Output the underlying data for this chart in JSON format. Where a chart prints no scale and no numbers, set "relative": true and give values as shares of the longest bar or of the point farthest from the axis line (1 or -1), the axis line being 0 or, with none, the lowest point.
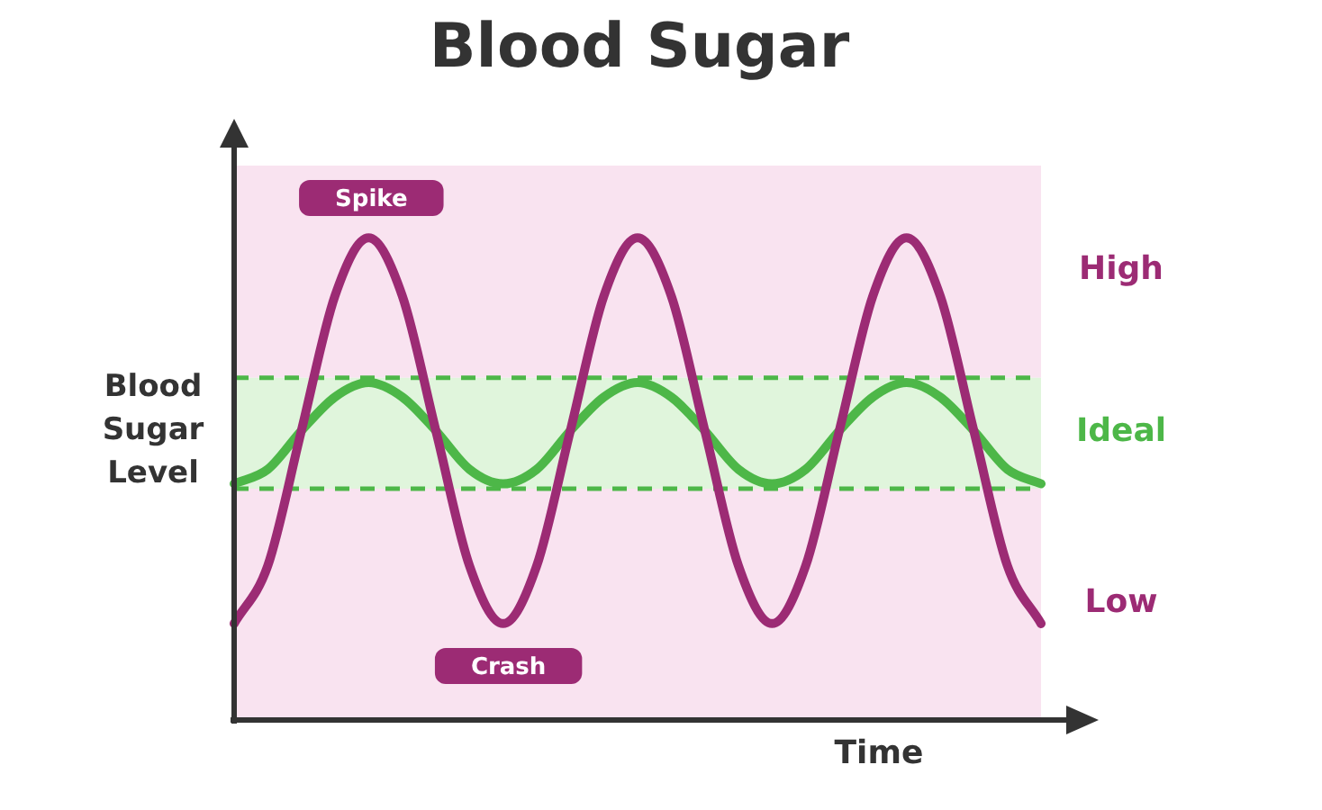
{
  "chart_data": {
    "type": "line",
    "title": "Blood Sugar",
    "xlabel": "Time",
    "ylabel": "Blood Sugar Level",
    "relative": true,
    "legend": false,
    "marker": "none",
    "line_style": "solid",
    "categories": [
      null,
      null,
      null,
      null,
      null,
      null,
      null,
      null,
      null,
      null,
      null,
      null,
      null,
      null,
      null,
      null,
      null,
      null,
      null,
      null,
      null,
      null,
      null,
      null,
      null
    ],
    "series": [
      {
        "color": "#9c2b74",
        "values": [
          0.2,
          0.32,
          0.6,
          0.88,
          1,
          0.88,
          0.6,
          0.32,
          0.2,
          0.32,
          0.6,
          0.88,
          1,
          0.88,
          0.6,
          0.32,
          0.2,
          0.32,
          0.6,
          0.88,
          1,
          0.88,
          0.6,
          0.32,
          0.2
        ]
      },
      {
        "color": "#4db748",
        "values": [
          0.49,
          0.52,
          0.6,
          0.67,
          0.7,
          0.67,
          0.6,
          0.52,
          0.49,
          0.52,
          0.6,
          0.67,
          0.7,
          0.67,
          0.6,
          0.52,
          0.49,
          0.52,
          0.6,
          0.67,
          0.7,
          0.67,
          0.6,
          0.52,
          0.49
        ]
      }
    ],
    "bands": [
      {
        "axis": "y",
        "from": 0.71,
        "to": 1.15,
        "label": "High",
        "color": "#f9e3f0"
      },
      {
        "axis": "y",
        "from": 0.48,
        "to": 0.71,
        "label": "Ideal",
        "color": "#e0f5dc"
      },
      {
        "axis": "y",
        "from": 0,
        "to": 0.48,
        "label": "Low",
        "color": "#f9e3f0"
      }
    ],
    "ref_lines": [
      {
        "axis": "y",
        "value": 0.71,
        "color": "#4db748",
        "line_style": "dashed"
      },
      {
        "axis": "y",
        "value": 0.48,
        "color": "#4db748",
        "line_style": "dashed"
      }
    ],
    "annotations": [
      "Spike",
      "Crash"
    ]
  }
}
